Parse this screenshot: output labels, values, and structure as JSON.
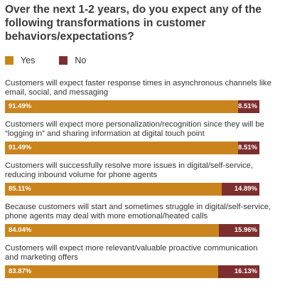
{
  "title": "Over the next 1-2 years, do you expect any of the following transformations in customer behaviors/expectations?",
  "legend": {
    "yes": "Yes",
    "no": "No"
  },
  "colors": {
    "yes": "#c9841d",
    "no": "#7d2f2e"
  },
  "chart_data": {
    "type": "bar",
    "orientation": "horizontal",
    "stacked": true,
    "title": "Over the next 1-2 years, do you expect any of the following transformations in customer behaviors/expectations?",
    "categories": [
      "Customers will expect faster response times in asynchronous channels like email, social, and messaging",
      "Customers will expect more personalization/recognition since they will be “logging in” and sharing information at digital touch point",
      "Customers will successfully resolve more issues in digital/self-service, reducing inbound volume for phone agents",
      "Because customers will start and sometimes struggle in digital/self-service, phone agents may deal with more emotional/heated calls",
      "Customers will expect more relevant/valuable proactive communication and marketing offers"
    ],
    "series": [
      {
        "name": "Yes",
        "values": [
          91.49,
          91.49,
          85.11,
          84.04,
          83.87
        ],
        "labels": [
          "91.49%",
          "91.49%",
          "85.11%",
          "84.04%",
          "83.87%"
        ]
      },
      {
        "name": "No",
        "values": [
          8.51,
          8.51,
          14.89,
          15.96,
          16.13
        ],
        "labels": [
          "8.51%",
          "8.51%",
          "14.89%",
          "15.96%",
          "16.13%"
        ]
      }
    ],
    "xlim": [
      0,
      100
    ],
    "legend_position": "top-left",
    "grid": false
  }
}
